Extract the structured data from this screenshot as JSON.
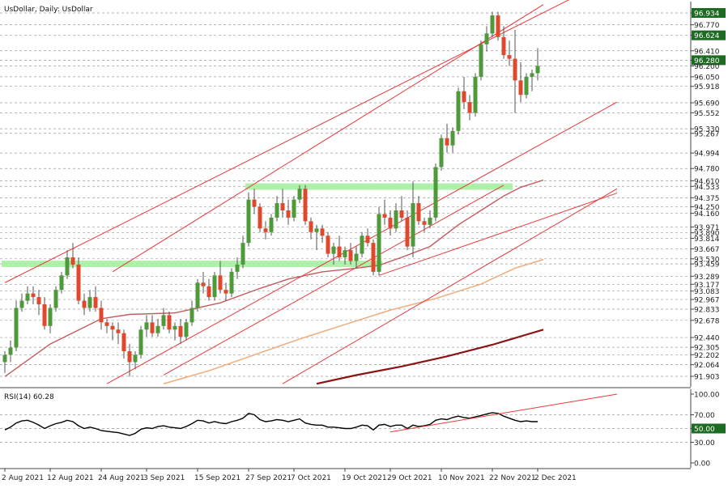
{
  "chart_title": "UsDollar, Daily:  UsDollar",
  "rsi_title": "RSI(14) 60.28",
  "colors": {
    "up": "#4e9a3a",
    "down": "#e0482e",
    "wick": "#555555",
    "trend": "#e8393a",
    "zone": "#a6f0a2",
    "ma_fast": "#c65a5a",
    "ma_mid": "#f0b080",
    "ma_slow": "#8a1414",
    "badge_fill": "#1d6b22",
    "grid": "#9a9a9a"
  },
  "chart_data": [
    {
      "type": "candlestick",
      "title": "UsDollar, Daily:  UsDollar",
      "ylim": [
        91.8,
        97.05
      ],
      "price_labels": [
        {
          "value": 96.934,
          "text": "96.934",
          "badge": true
        },
        {
          "value": 96.77,
          "text": "96.770"
        },
        {
          "value": 96.624,
          "text": "96.624",
          "badge": true
        },
        {
          "value": 96.41,
          "text": "96.410"
        },
        {
          "value": 96.28,
          "text": "96.280",
          "badge": true
        },
        {
          "value": 96.2,
          "text": "96.200"
        },
        {
          "value": 96.05,
          "text": "96.050"
        },
        {
          "value": 95.918,
          "text": "95.918"
        },
        {
          "value": 95.69,
          "text": "95.690"
        },
        {
          "value": 95.552,
          "text": "95.552"
        },
        {
          "value": 95.33,
          "text": "95.330"
        },
        {
          "value": 95.267,
          "text": "95.267"
        },
        {
          "value": 94.994,
          "text": "94.994"
        },
        {
          "value": 94.78,
          "text": "94.780"
        },
        {
          "value": 94.61,
          "text": "94.610"
        },
        {
          "value": 94.533,
          "text": "94.533"
        },
        {
          "value": 94.375,
          "text": "94.375"
        },
        {
          "value": 94.25,
          "text": "94.250"
        },
        {
          "value": 94.16,
          "text": "94.160"
        },
        {
          "value": 93.971,
          "text": "93.971"
        },
        {
          "value": 93.89,
          "text": "93.890"
        },
        {
          "value": 93.814,
          "text": "93.814"
        },
        {
          "value": 93.667,
          "text": "93.667"
        },
        {
          "value": 93.53,
          "text": "93.530"
        },
        {
          "value": 93.459,
          "text": "93.459"
        },
        {
          "value": 93.289,
          "text": "93.289"
        },
        {
          "value": 93.177,
          "text": "93.177"
        },
        {
          "value": 93.083,
          "text": "93.083"
        },
        {
          "value": 92.967,
          "text": "92.967"
        },
        {
          "value": 92.833,
          "text": "92.833"
        },
        {
          "value": 92.678,
          "text": "92.678"
        },
        {
          "value": 92.44,
          "text": "92.440"
        },
        {
          "value": 92.305,
          "text": "92.305"
        },
        {
          "value": 92.202,
          "text": "92.202"
        },
        {
          "value": 92.064,
          "text": "92.064"
        },
        {
          "value": 91.903,
          "text": "91.903"
        }
      ],
      "date_labels": [
        {
          "index": 0,
          "text": "2 Aug 2021"
        },
        {
          "index": 8,
          "text": "12 Aug 2021"
        },
        {
          "index": 17,
          "text": "24 Aug 2021"
        },
        {
          "index": 25,
          "text": "3 Sep 2021"
        },
        {
          "index": 34,
          "text": "15 Sep 2021"
        },
        {
          "index": 43,
          "text": "27 Sep 2021"
        },
        {
          "index": 51,
          "text": "7 Oct 2021"
        },
        {
          "index": 60,
          "text": "19 Oct 2021"
        },
        {
          "index": 68,
          "text": "29 Oct 2021"
        },
        {
          "index": 77,
          "text": "10 Nov 2021"
        },
        {
          "index": 86,
          "text": "22 Nov 2021"
        },
        {
          "index": 94,
          "text": "2 Dec 2021"
        }
      ],
      "candles": [
        [
          92.1,
          92.25,
          91.95,
          92.2
        ],
        [
          92.2,
          92.4,
          92.1,
          92.3
        ],
        [
          92.3,
          92.95,
          92.25,
          92.85
        ],
        [
          92.85,
          93.05,
          92.8,
          92.95
        ],
        [
          92.95,
          93.15,
          92.9,
          93.05
        ],
        [
          93.05,
          93.15,
          92.9,
          93.0
        ],
        [
          93.0,
          93.1,
          92.75,
          92.9
        ],
        [
          92.9,
          93.0,
          92.55,
          92.6
        ],
        [
          92.6,
          92.9,
          92.5,
          92.85
        ],
        [
          92.85,
          93.15,
          92.8,
          93.1
        ],
        [
          93.1,
          93.35,
          93.05,
          93.3
        ],
        [
          93.3,
          93.65,
          93.25,
          93.55
        ],
        [
          93.55,
          93.75,
          93.4,
          93.45
        ],
        [
          93.45,
          93.55,
          92.9,
          92.95
        ],
        [
          92.95,
          93.05,
          92.75,
          92.85
        ],
        [
          92.85,
          93.1,
          92.8,
          93.0
        ],
        [
          93.0,
          93.15,
          92.8,
          92.85
        ],
        [
          92.85,
          92.95,
          92.55,
          92.65
        ],
        [
          92.65,
          92.7,
          92.5,
          92.6
        ],
        [
          92.6,
          92.65,
          92.4,
          92.55
        ],
        [
          92.55,
          92.65,
          92.35,
          92.5
        ],
        [
          92.5,
          92.55,
          92.15,
          92.25
        ],
        [
          92.25,
          92.35,
          91.9,
          92.1
        ],
        [
          92.1,
          92.25,
          92.0,
          92.2
        ],
        [
          92.2,
          92.6,
          92.15,
          92.55
        ],
        [
          92.55,
          92.75,
          92.45,
          92.65
        ],
        [
          92.65,
          92.75,
          92.45,
          92.5
        ],
        [
          92.5,
          92.7,
          92.45,
          92.6
        ],
        [
          92.6,
          92.85,
          92.55,
          92.75
        ],
        [
          92.75,
          92.8,
          92.5,
          92.55
        ],
        [
          92.55,
          92.65,
          92.4,
          92.6
        ],
        [
          92.6,
          92.7,
          92.35,
          92.45
        ],
        [
          92.45,
          92.7,
          92.4,
          92.65
        ],
        [
          92.65,
          92.95,
          92.6,
          92.85
        ],
        [
          92.85,
          93.25,
          92.8,
          93.2
        ],
        [
          93.2,
          93.35,
          93.05,
          93.15
        ],
        [
          93.15,
          93.25,
          92.95,
          93.0
        ],
        [
          93.0,
          93.35,
          92.95,
          93.3
        ],
        [
          93.3,
          93.5,
          93.05,
          93.1
        ],
        [
          93.1,
          93.2,
          92.95,
          93.05
        ],
        [
          93.05,
          93.4,
          93.0,
          93.35
        ],
        [
          93.35,
          93.55,
          93.25,
          93.45
        ],
        [
          93.45,
          93.85,
          93.4,
          93.75
        ],
        [
          93.75,
          94.45,
          93.7,
          94.35
        ],
        [
          94.35,
          94.5,
          94.15,
          94.25
        ],
        [
          94.25,
          94.3,
          93.9,
          93.95
        ],
        [
          93.95,
          94.05,
          93.8,
          93.9
        ],
        [
          93.9,
          94.15,
          93.85,
          94.1
        ],
        [
          94.1,
          94.4,
          94.05,
          94.3
        ],
        [
          94.3,
          94.5,
          94.1,
          94.2
        ],
        [
          94.2,
          94.35,
          94.0,
          94.1
        ],
        [
          94.1,
          94.4,
          94.05,
          94.35
        ],
        [
          94.35,
          94.55,
          94.3,
          94.5
        ],
        [
          94.5,
          94.55,
          94.0,
          94.05
        ],
        [
          94.05,
          94.1,
          93.8,
          93.9
        ],
        [
          93.9,
          94.0,
          93.65,
          93.95
        ],
        [
          93.95,
          94.0,
          93.75,
          93.85
        ],
        [
          93.85,
          93.9,
          93.55,
          93.6
        ],
        [
          93.6,
          93.75,
          93.45,
          93.7
        ],
        [
          93.7,
          93.85,
          93.5,
          93.55
        ],
        [
          93.55,
          93.7,
          93.45,
          93.65
        ],
        [
          93.65,
          93.75,
          93.45,
          93.5
        ],
        [
          93.5,
          93.7,
          93.4,
          93.6
        ],
        [
          93.6,
          93.9,
          93.55,
          93.85
        ],
        [
          93.85,
          93.95,
          93.7,
          93.75
        ],
        [
          93.75,
          93.8,
          93.3,
          93.35
        ],
        [
          93.35,
          94.25,
          93.3,
          94.15
        ],
        [
          94.15,
          94.35,
          94.0,
          94.1
        ],
        [
          94.1,
          94.2,
          93.85,
          93.95
        ],
        [
          93.95,
          94.3,
          93.9,
          94.2
        ],
        [
          94.2,
          94.4,
          94.05,
          94.1
        ],
        [
          94.1,
          94.2,
          93.65,
          93.7
        ],
        [
          93.7,
          94.6,
          93.55,
          94.3
        ],
        [
          94.3,
          94.4,
          94.0,
          94.05
        ],
        [
          94.05,
          94.1,
          93.9,
          94.0
        ],
        [
          94.0,
          94.2,
          93.95,
          94.1
        ],
        [
          94.1,
          94.85,
          94.05,
          94.8
        ],
        [
          94.8,
          95.25,
          94.75,
          95.2
        ],
        [
          95.2,
          95.4,
          95.0,
          95.1
        ],
        [
          95.1,
          95.35,
          95.0,
          95.3
        ],
        [
          95.3,
          95.9,
          95.25,
          95.85
        ],
        [
          95.85,
          96.05,
          95.6,
          95.7
        ],
        [
          95.7,
          95.8,
          95.45,
          95.55
        ],
        [
          95.55,
          96.1,
          95.5,
          96.05
        ],
        [
          96.05,
          96.55,
          96.0,
          96.5
        ],
        [
          96.5,
          96.75,
          96.4,
          96.65
        ],
        [
          96.65,
          96.95,
          96.6,
          96.9
        ],
        [
          96.9,
          96.95,
          96.55,
          96.6
        ],
        [
          96.6,
          96.75,
          96.3,
          96.35
        ],
        [
          96.35,
          96.55,
          96.2,
          96.3
        ],
        [
          96.3,
          96.7,
          95.55,
          96.0
        ],
        [
          96.0,
          96.25,
          95.7,
          95.8
        ],
        [
          95.8,
          96.1,
          95.75,
          96.05
        ],
        [
          96.05,
          96.15,
          95.85,
          96.1
        ],
        [
          96.1,
          96.45,
          96.0,
          96.2
        ]
      ],
      "ma_fast": [
        [
          0,
          91.9
        ],
        [
          8,
          92.35
        ],
        [
          17,
          92.7
        ],
        [
          22,
          92.76
        ],
        [
          30,
          92.78
        ],
        [
          38,
          92.92
        ],
        [
          45,
          93.12
        ],
        [
          50,
          93.25
        ],
        [
          56,
          93.35
        ],
        [
          62,
          93.4
        ],
        [
          66,
          93.44
        ],
        [
          70,
          93.55
        ],
        [
          75,
          93.7
        ],
        [
          80,
          94.0
        ],
        [
          85,
          94.25
        ],
        [
          88,
          94.4
        ],
        [
          91,
          94.52
        ],
        [
          95,
          94.62
        ]
      ],
      "ma_mid": [
        [
          28,
          91.8
        ],
        [
          36,
          91.98
        ],
        [
          44,
          92.2
        ],
        [
          52,
          92.42
        ],
        [
          60,
          92.62
        ],
        [
          68,
          92.82
        ],
        [
          76,
          92.98
        ],
        [
          84,
          93.18
        ],
        [
          90,
          93.4
        ],
        [
          95,
          93.52
        ]
      ],
      "ma_slow": [
        [
          55,
          91.8
        ],
        [
          62,
          91.92
        ],
        [
          70,
          92.04
        ],
        [
          78,
          92.18
        ],
        [
          86,
          92.34
        ],
        [
          92,
          92.48
        ],
        [
          95,
          92.55
        ]
      ],
      "zones": [
        {
          "from": 0,
          "to": 66,
          "price": 93.46
        },
        {
          "from": 43,
          "to": 89,
          "price": 94.53
        }
      ],
      "trendlines": [
        [
          0,
          93.2,
          108,
          97.45
        ],
        [
          19,
          93.35,
          95,
          97.05
        ],
        [
          18,
          91.8,
          108,
          95.7
        ],
        [
          66,
          93.3,
          108,
          94.44
        ],
        [
          28,
          91.92,
          88,
          94.55
        ],
        [
          49,
          91.8,
          108,
          94.5
        ]
      ]
    },
    {
      "type": "line",
      "title": "RSI(14) 60.28",
      "ylim": [
        0,
        100
      ],
      "levels": [
        {
          "value": 100,
          "text": "100.00"
        },
        {
          "value": 70,
          "text": "70.00"
        },
        {
          "value": 50,
          "text": "50.00",
          "badge": true
        },
        {
          "value": 30,
          "text": "30.00"
        },
        {
          "value": 0,
          "text": "0.00"
        }
      ],
      "values": [
        48,
        52,
        58,
        61,
        62,
        59,
        55,
        50,
        54,
        57,
        59,
        62,
        60,
        54,
        50,
        52,
        50,
        47,
        46,
        45,
        44,
        42,
        40,
        43,
        49,
        51,
        50,
        53,
        54,
        52,
        51,
        50,
        53,
        57,
        62,
        61,
        58,
        60,
        58,
        57,
        60,
        62,
        65,
        72,
        70,
        63,
        60,
        61,
        63,
        62,
        60,
        62,
        64,
        58,
        56,
        55,
        55,
        52,
        52,
        51,
        50,
        50,
        52,
        55,
        54,
        48,
        55,
        56,
        53,
        55,
        55,
        50,
        55,
        53,
        54,
        56,
        62,
        64,
        63,
        66,
        68,
        66,
        65,
        67,
        69,
        71,
        73,
        72,
        68,
        65,
        62,
        60,
        61,
        60,
        60
      ],
      "trendline": [
        68,
        45,
        108,
        100
      ]
    }
  ]
}
